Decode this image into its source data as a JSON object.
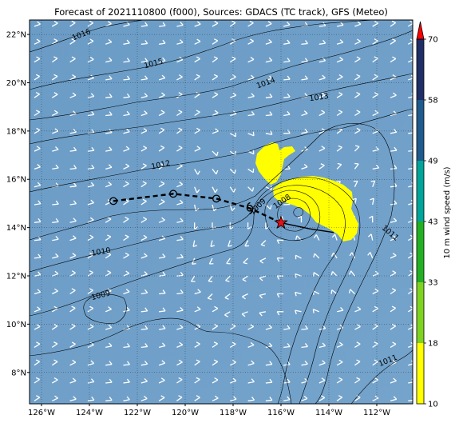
{
  "title": "Forecast of 2021110800 (f000), Sources: GDACS (TC track), GFS (Meteo)",
  "map": {
    "lon_range": [
      -126.5,
      -110.5
    ],
    "lat_range": [
      6.7,
      22.6
    ],
    "ocean_color": "#6f9fc8",
    "gridlines": true,
    "x_ticks": [
      {
        "value": -126,
        "label": "126°W"
      },
      {
        "value": -124,
        "label": "124°W"
      },
      {
        "value": -122,
        "label": "122°W"
      },
      {
        "value": -120,
        "label": "120°W"
      },
      {
        "value": -118,
        "label": "118°W"
      },
      {
        "value": -116,
        "label": "116°W"
      },
      {
        "value": -114,
        "label": "114°W"
      },
      {
        "value": -112,
        "label": "112°W"
      }
    ],
    "y_ticks": [
      {
        "value": 22,
        "label": "22°N"
      },
      {
        "value": 20,
        "label": "20°N"
      },
      {
        "value": 18,
        "label": "18°N"
      },
      {
        "value": 16,
        "label": "16°N"
      },
      {
        "value": 14,
        "label": "14°N"
      },
      {
        "value": 12,
        "label": "12°N"
      },
      {
        "value": 10,
        "label": "10°N"
      },
      {
        "value": 8,
        "label": "8°N"
      }
    ]
  },
  "isobar_labels": [
    {
      "text": "1016",
      "lon": -124.3,
      "lat": 21.9,
      "angle": -22
    },
    {
      "text": "1015",
      "lon": -121.3,
      "lat": 20.7,
      "angle": -15
    },
    {
      "text": "1014",
      "lon": -116.6,
      "lat": 19.9,
      "angle": -20
    },
    {
      "text": "1013",
      "lon": -114.4,
      "lat": 19.3,
      "angle": -8
    },
    {
      "text": "1012",
      "lon": -121.0,
      "lat": 16.5,
      "angle": -12
    },
    {
      "text": "1010",
      "lon": -123.5,
      "lat": 12.9,
      "angle": -10
    },
    {
      "text": "1009",
      "lon": -123.5,
      "lat": 11.1,
      "angle": -15
    },
    {
      "text": "1009",
      "lon": -116.9,
      "lat": 14.8,
      "angle": -45
    },
    {
      "text": "1008",
      "lon": -115.9,
      "lat": 15.0,
      "angle": -35
    },
    {
      "text": "1011",
      "lon": -111.5,
      "lat": 13.7,
      "angle": 40
    },
    {
      "text": "1011",
      "lon": -111.5,
      "lat": 8.4,
      "angle": -22
    }
  ],
  "tc_track": {
    "past": [
      [
        -123.0,
        15.1
      ],
      [
        -120.5,
        15.4
      ],
      [
        -118.7,
        15.2
      ],
      [
        -117.3,
        14.8
      ],
      [
        -116.0,
        14.2
      ]
    ],
    "current": [
      -116.0,
      14.2
    ],
    "forecast": [
      [
        -116.0,
        14.2
      ],
      [
        -114.8,
        13.95
      ],
      [
        -113.8,
        13.8
      ]
    ]
  },
  "colorbar": {
    "label": "10 m wind speed (m/s)",
    "colors": [
      "#ffff00",
      "#7ed321",
      "#22b022",
      "#00a59a",
      "#1f5a8c",
      "#1f2e66",
      "#ff0000"
    ],
    "ticks": [
      "10",
      "18",
      "33",
      "43",
      "49",
      "58",
      "70"
    ]
  }
}
